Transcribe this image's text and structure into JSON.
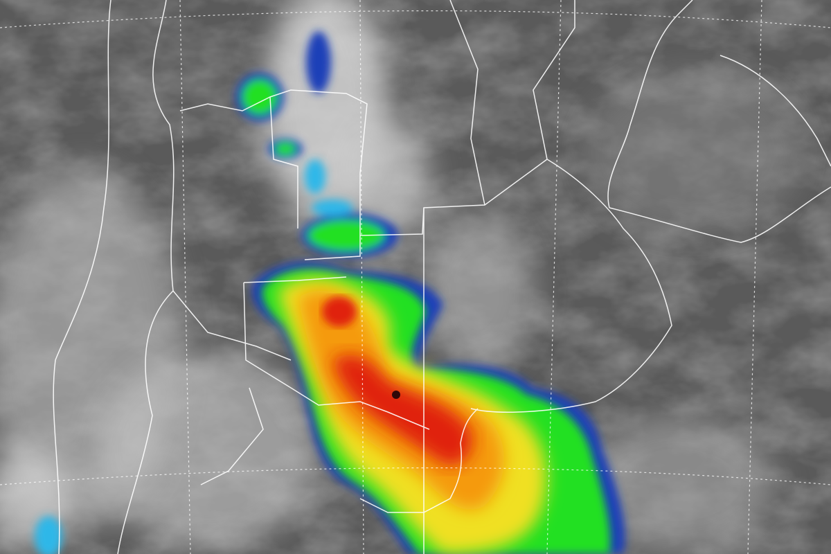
{
  "image": {
    "kind": "infrared satellite image",
    "colors": {
      "background": "#5a5a5a",
      "cloud_light": "#d8d8d8",
      "cloud_mid": "#9a9a9a",
      "storm_blue": "#1a3fb8",
      "storm_cyan": "#2fb7e8",
      "storm_green": "#22e022",
      "storm_yellow": "#f0e020",
      "storm_orange": "#f59a10",
      "storm_red": "#e02010",
      "storm_dark": "#300808",
      "borders": "#ffffff"
    },
    "overlays": [
      "political-borders",
      "lat-lon-grid-dotted"
    ]
  }
}
